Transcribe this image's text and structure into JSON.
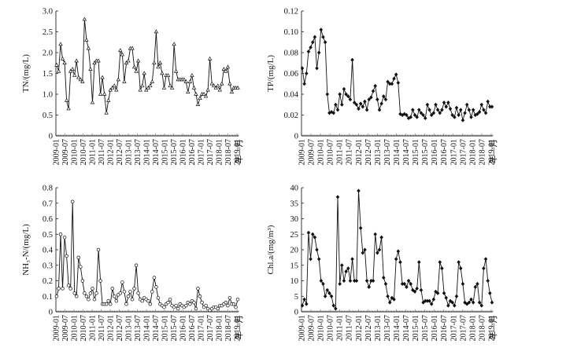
{
  "chart_data": [
    {
      "type": "line",
      "ylabel": "TN/(mg/L)",
      "xlabel": "年—月",
      "ylim": [
        0,
        3.0
      ],
      "yticks": [
        "0",
        "0.5",
        "1.0",
        "1.5",
        "2.0",
        "2.5",
        "3.0"
      ],
      "xticks": [
        "2009-01",
        "2009-07",
        "2010-01",
        "2010-07",
        "2011-01",
        "2011-07",
        "2012-01",
        "2012-07",
        "2013-01",
        "2013-07",
        "2014-01",
        "2014-07",
        "2015-01",
        "2015-07",
        "2016-01",
        "2016-07",
        "2017-01",
        "2017-07",
        "2018-01",
        "2018-07",
        "2019-01"
      ],
      "marker": "triangle",
      "series": [
        {
          "values": [
            1.7,
            1.55,
            2.2,
            1.85,
            1.75,
            0.85,
            0.65,
            1.55,
            1.6,
            1.45,
            1.8,
            1.4,
            1.35,
            1.3,
            2.8,
            2.3,
            2.1,
            1.6,
            0.8,
            1.75,
            1.8,
            1.8,
            1.0,
            1.4,
            1.0,
            0.55,
            0.85,
            1.1,
            1.15,
            1.2,
            1.1,
            1.35,
            2.05,
            1.95,
            1.3,
            1.75,
            1.8,
            2.1,
            2.1,
            1.65,
            1.55,
            1.8,
            1.1,
            1.2,
            1.5,
            1.1,
            1.15,
            1.2,
            1.3,
            1.75,
            2.5,
            1.65,
            1.75,
            1.5,
            1.15,
            1.45,
            1.45,
            1.2,
            1.15,
            2.2,
            1.55,
            1.35,
            1.35,
            1.35,
            1.35,
            1.3,
            1.05,
            1.3,
            1.45,
            1.15,
            1.0,
            0.75,
            0.9,
            1.0,
            1.0,
            0.95,
            1.1,
            1.85,
            1.25,
            1.2,
            1.15,
            1.2,
            1.1,
            1.25,
            1.6,
            1.55,
            1.65,
            1.25,
            1.05,
            1.15,
            1.15,
            1.15
          ]
        }
      ]
    },
    {
      "type": "line",
      "ylabel": "TP/(mg/L)",
      "xlabel": "年—月",
      "ylim": [
        0,
        0.12
      ],
      "yticks": [
        "0",
        "0.02",
        "0.04",
        "0.06",
        "0.08",
        "0.10",
        "0.12"
      ],
      "xticks": [
        "2009-01",
        "2009-07",
        "2010-01",
        "2010-07",
        "2011-01",
        "2011-07",
        "2012-01",
        "2012-07",
        "2013-01",
        "2013-07",
        "2014-01",
        "2014-07",
        "2015-01",
        "2015-07",
        "2016-01",
        "2016-07",
        "2017-01",
        "2017-07",
        "2018-01",
        "2018-07",
        "2019-01"
      ],
      "marker": "diamond",
      "series": [
        {
          "values": [
            0.065,
            0.05,
            0.06,
            0.081,
            0.085,
            0.09,
            0.095,
            0.065,
            0.08,
            0.102,
            0.095,
            0.09,
            0.04,
            0.022,
            0.023,
            0.022,
            0.03,
            0.025,
            0.04,
            0.03,
            0.045,
            0.04,
            0.038,
            0.035,
            0.073,
            0.032,
            0.03,
            0.026,
            0.031,
            0.028,
            0.033,
            0.025,
            0.035,
            0.037,
            0.043,
            0.048,
            0.035,
            0.025,
            0.031,
            0.038,
            0.035,
            0.052,
            0.05,
            0.05,
            0.055,
            0.059,
            0.051,
            0.021,
            0.02,
            0.021,
            0.02,
            0.017,
            0.018,
            0.025,
            0.02,
            0.018,
            0.025,
            0.022,
            0.02,
            0.017,
            0.03,
            0.025,
            0.02,
            0.022,
            0.03,
            0.025,
            0.022,
            0.025,
            0.032,
            0.028,
            0.032,
            0.026,
            0.02,
            0.018,
            0.027,
            0.02,
            0.025,
            0.015,
            0.022,
            0.03,
            0.025,
            0.018,
            0.025,
            0.02,
            0.021,
            0.023,
            0.03,
            0.025,
            0.022,
            0.033,
            0.028,
            0.028
          ]
        }
      ]
    },
    {
      "type": "line",
      "ylabel": "NH₃-N/(mg/L)",
      "xlabel": "年—月",
      "ylim": [
        0,
        0.8
      ],
      "yticks": [
        "0",
        "0.1",
        "0.2",
        "0.3",
        "0.4",
        "0.5",
        "0.6",
        "0.7",
        "0.8"
      ],
      "xticks": [
        "2009-01",
        "2009-07",
        "2010-01",
        "2010-07",
        "2011-01",
        "2011-07",
        "2012-01",
        "2012-07",
        "2013-01",
        "2013-07",
        "2014-01",
        "2014-07",
        "2015-01",
        "2015-07",
        "2016-01",
        "2016-07",
        "2017-01",
        "2017-07",
        "2018-01",
        "2018-07",
        "2019-01"
      ],
      "marker": "circle",
      "series": [
        {
          "values": [
            0.1,
            0.15,
            0.5,
            0.15,
            0.48,
            0.36,
            0.17,
            0.15,
            0.71,
            0.12,
            0.1,
            0.35,
            0.29,
            0.2,
            0.12,
            0.1,
            0.08,
            0.12,
            0.15,
            0.08,
            0.12,
            0.4,
            0.2,
            0.05,
            0.05,
            0.05,
            0.07,
            0.05,
            0.15,
            0.1,
            0.07,
            0.11,
            0.12,
            0.19,
            0.13,
            0.05,
            0.1,
            0.13,
            0.08,
            0.15,
            0.3,
            0.12,
            0.08,
            0.07,
            0.09,
            0.08,
            0.07,
            0.05,
            0.13,
            0.22,
            0.16,
            0.09,
            0.05,
            0.04,
            0.03,
            0.05,
            0.06,
            0.08,
            0.04,
            0.03,
            0.04,
            0.02,
            0.05,
            0.04,
            0.03,
            0.04,
            0.06,
            0.05,
            0.07,
            0.06,
            0.02,
            0.15,
            0.1,
            0.06,
            0.03,
            0.04,
            0.02,
            0.01,
            0.02,
            0.03,
            0.03,
            0.02,
            0.04,
            0.04,
            0.05,
            0.06,
            0.04,
            0.09,
            0.05,
            0.05,
            0.03,
            0.08
          ]
        }
      ]
    },
    {
      "type": "line",
      "ylabel": "Chl.a/(mg/m³)",
      "xlabel": "年—月",
      "ylim": [
        0,
        40
      ],
      "yticks": [
        "0",
        "5",
        "10",
        "15",
        "20",
        "25",
        "30",
        "35",
        "40"
      ],
      "xticks": [
        "2009-01",
        "2009-07",
        "2010-01",
        "2010-07",
        "2011-01",
        "2011-07",
        "2012-01",
        "2012-07",
        "2013-01",
        "2013-07",
        "2014-01",
        "2014-07",
        "2015-01",
        "2015-07",
        "2016-01",
        "2016-07",
        "2017-01",
        "2017-07",
        "2018-01",
        "2018-07",
        "2019-01"
      ],
      "marker": "diamond",
      "series": [
        {
          "values": [
            2,
            4,
            2.5,
            25.5,
            17,
            25,
            24,
            20,
            17,
            10,
            9,
            5,
            7,
            6,
            5,
            2,
            1,
            37,
            9,
            15,
            10,
            13,
            14,
            10,
            17,
            10,
            10,
            39,
            27,
            19,
            20,
            10,
            8,
            10,
            10,
            25,
            19,
            20,
            24,
            11,
            9,
            5,
            3,
            4.5,
            4,
            17,
            19.5,
            16,
            9,
            9,
            8,
            10,
            9,
            7,
            6.5,
            7.5,
            16,
            7,
            3,
            3.5,
            3.5,
            3.5,
            2.5,
            4,
            6.5,
            6,
            16,
            14,
            6,
            4.5,
            2,
            3.5,
            3,
            2,
            5,
            16,
            14,
            9,
            3,
            2.5,
            3,
            4,
            3,
            8,
            9,
            3,
            2,
            14,
            17,
            10,
            6,
            3
          ]
        }
      ]
    }
  ]
}
